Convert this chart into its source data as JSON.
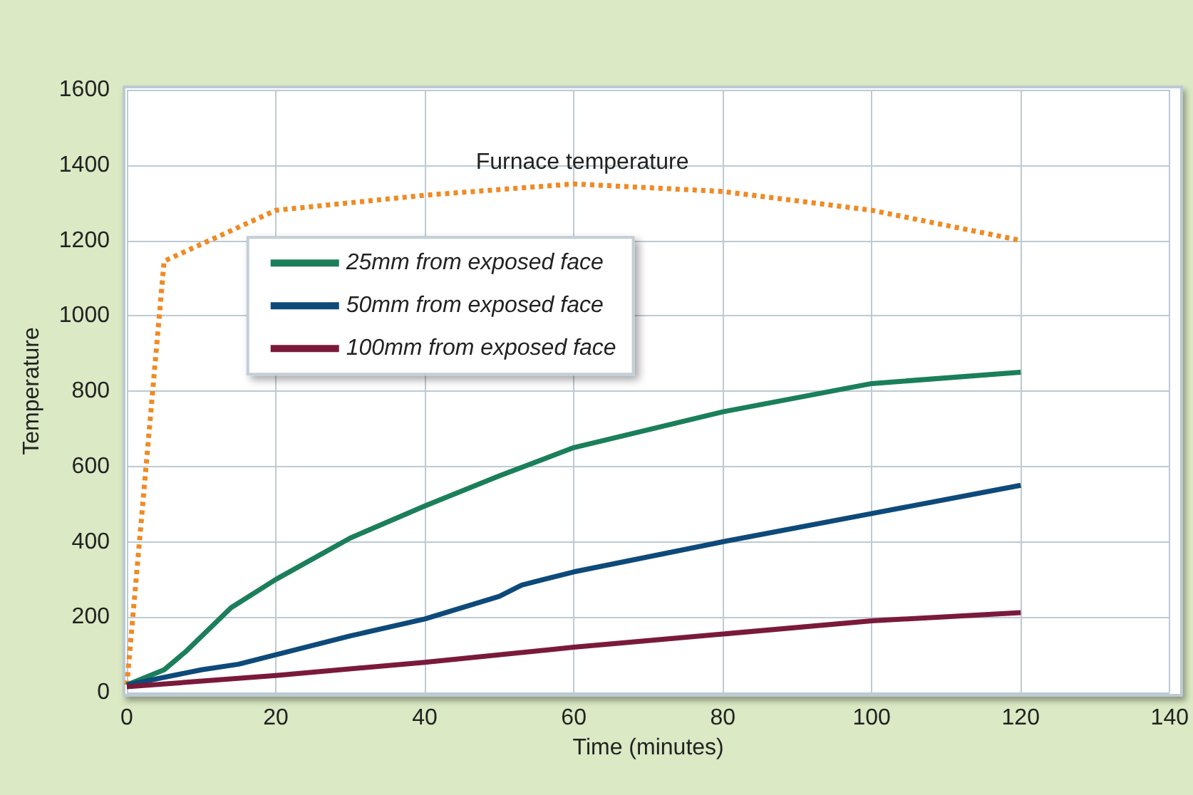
{
  "chart_data": {
    "type": "line",
    "xlabel": "Time (minutes)",
    "ylabel": "Temperature",
    "annotations": [
      "Furnace temperature"
    ],
    "xlim": [
      0,
      140
    ],
    "xticks": [
      0,
      20,
      40,
      60,
      80,
      100,
      120,
      140
    ],
    "ylim": [
      0,
      1600
    ],
    "yticks": [
      0,
      200,
      400,
      600,
      800,
      1000,
      1200,
      1400,
      1600
    ],
    "grid": true,
    "legend": "top left",
    "marker": "none",
    "series": [
      {
        "color": "#f08a24",
        "line_style": "dotted",
        "x": [
          0,
          5,
          20,
          40,
          60,
          80,
          100,
          120
        ],
        "values": [
          20,
          1145,
          1280,
          1320,
          1350,
          1330,
          1280,
          1200
        ]
      },
      {
        "name": "25mm from exposed face",
        "color": "#1a7f5a",
        "line_style": "solid",
        "x": [
          0,
          5,
          8,
          14,
          20,
          30,
          40,
          50,
          60,
          80,
          100,
          120
        ],
        "values": [
          20,
          60,
          110,
          225,
          300,
          410,
          495,
          575,
          650,
          745,
          820,
          850
        ]
      },
      {
        "name": "50mm from exposed face",
        "color": "#0d4a7a",
        "line_style": "solid",
        "x": [
          0,
          10,
          15,
          20,
          30,
          40,
          50,
          53,
          60,
          80,
          100,
          120
        ],
        "values": [
          20,
          60,
          75,
          100,
          150,
          195,
          255,
          285,
          320,
          400,
          475,
          550
        ]
      },
      {
        "name": "100mm from exposed face",
        "color": "#7a1a3a",
        "line_style": "solid",
        "x": [
          0,
          20,
          40,
          60,
          80,
          100,
          120
        ],
        "values": [
          15,
          45,
          80,
          120,
          155,
          190,
          212
        ]
      }
    ]
  }
}
